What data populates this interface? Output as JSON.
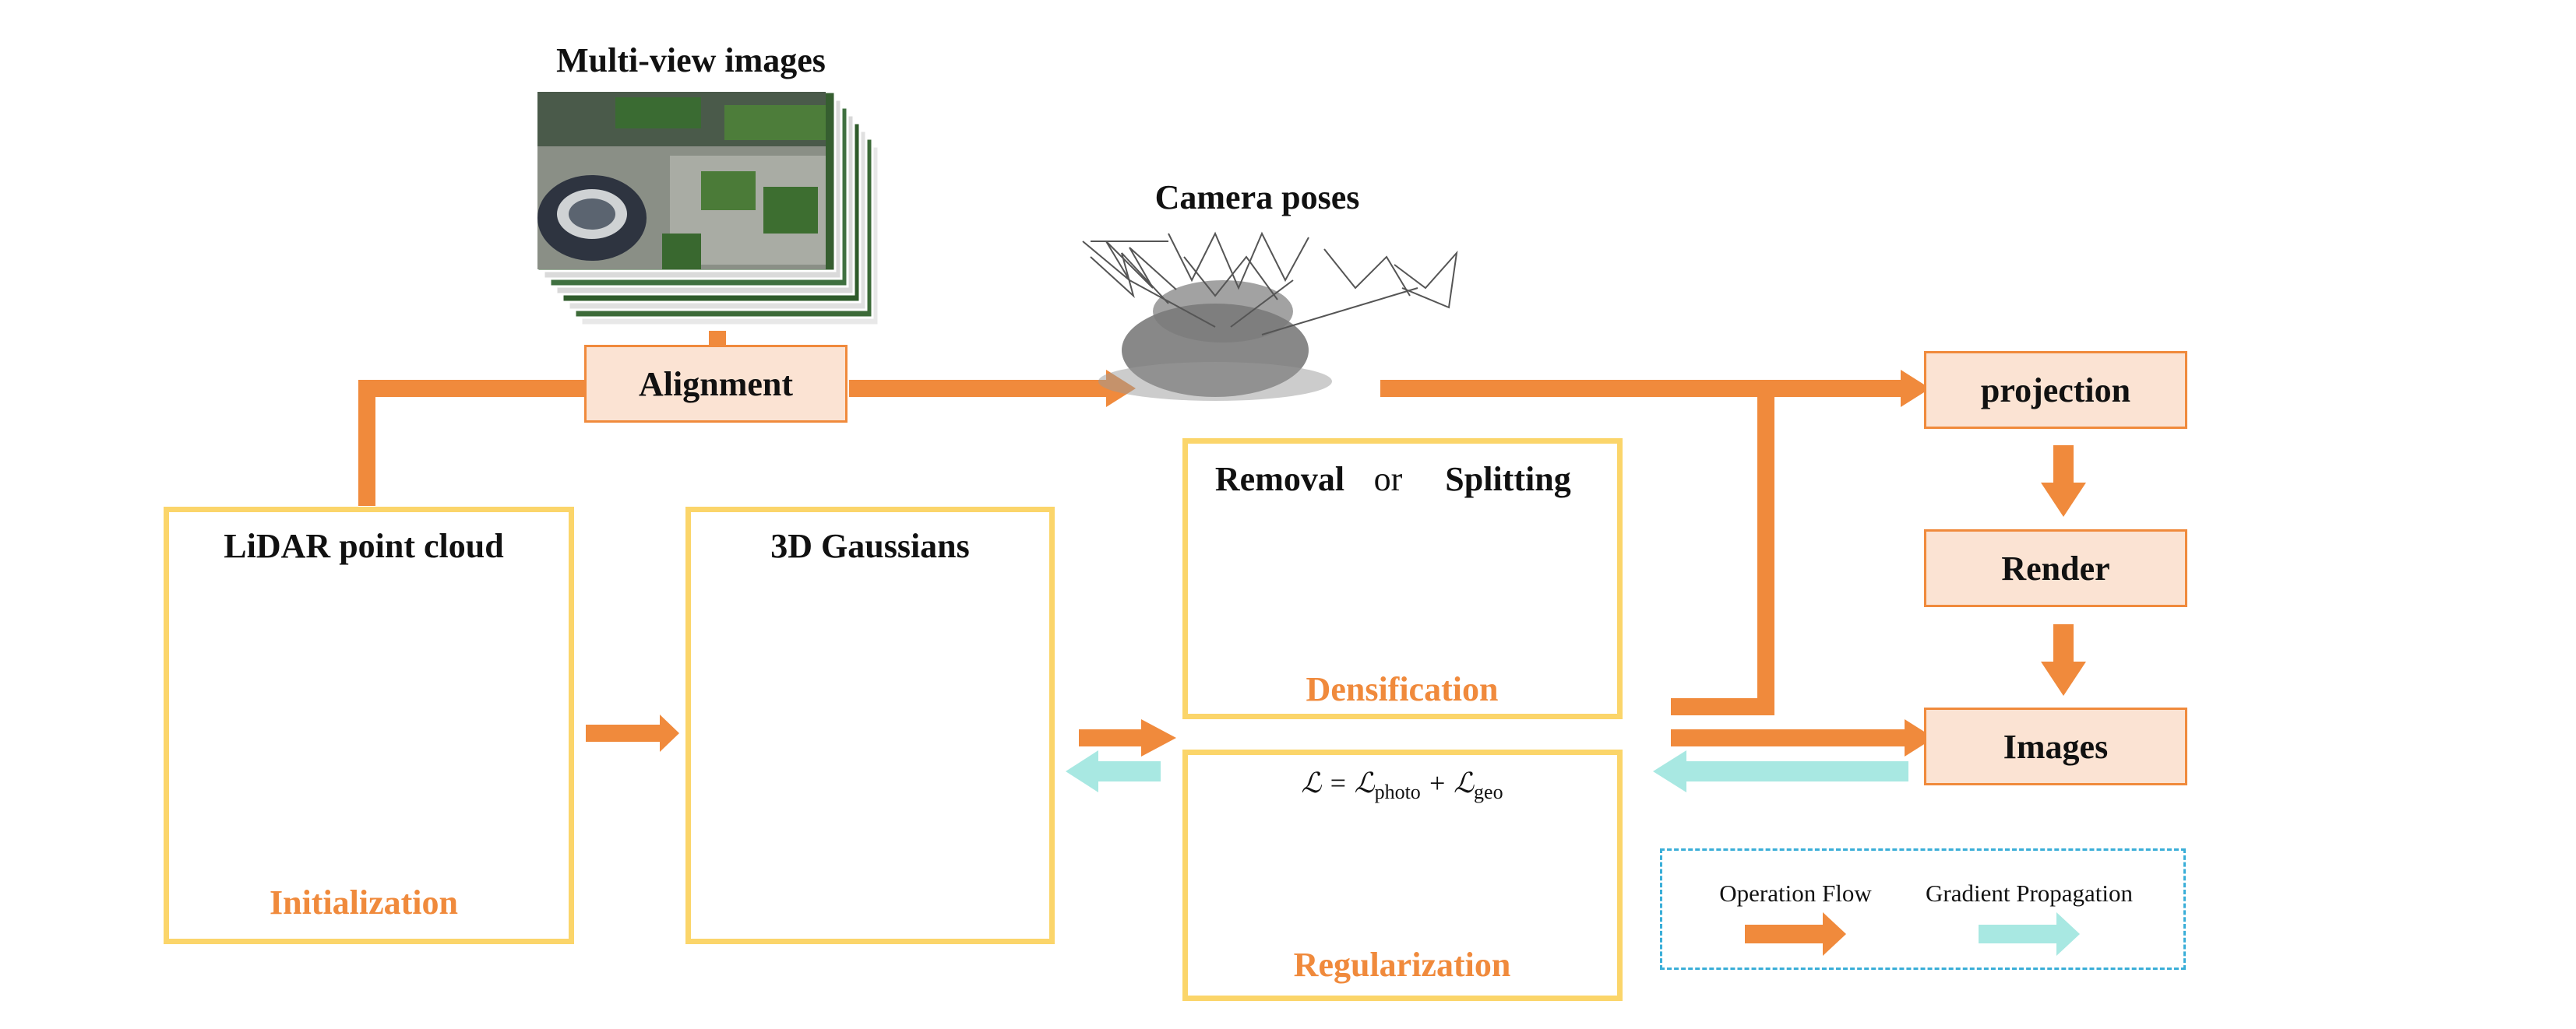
{
  "labels": {
    "multiview": "Multi-view images",
    "camera_poses": "Camera poses",
    "alignment": "Alignment",
    "lidar": "LiDAR point cloud",
    "initialization": "Initialization",
    "gaussians": "3D Gaussians",
    "removal": "Removal",
    "or": "or",
    "splitting": "Splitting",
    "densification": "Densification",
    "loss_L": "ℒ = ℒ",
    "loss_photo": "photo",
    "loss_plus": " + ℒ",
    "loss_geo": "geo",
    "regularization": "Regularization",
    "projection": "projection",
    "render": "Render",
    "images": "Images"
  },
  "legend": {
    "operation": "Operation Flow",
    "gradient": "Gradient Propagation"
  },
  "colors": {
    "operation_arrow": "#f08a3c",
    "gradient_arrow": "#a8e8e2",
    "box_border": "#fbd56a",
    "process_fill": "#fbe3d3",
    "accent_text": "#f08a3c",
    "legend_border": "#3aaed8"
  },
  "icons": {
    "removal": "red-x-icon",
    "splitting": "split-ellipse-icon"
  }
}
